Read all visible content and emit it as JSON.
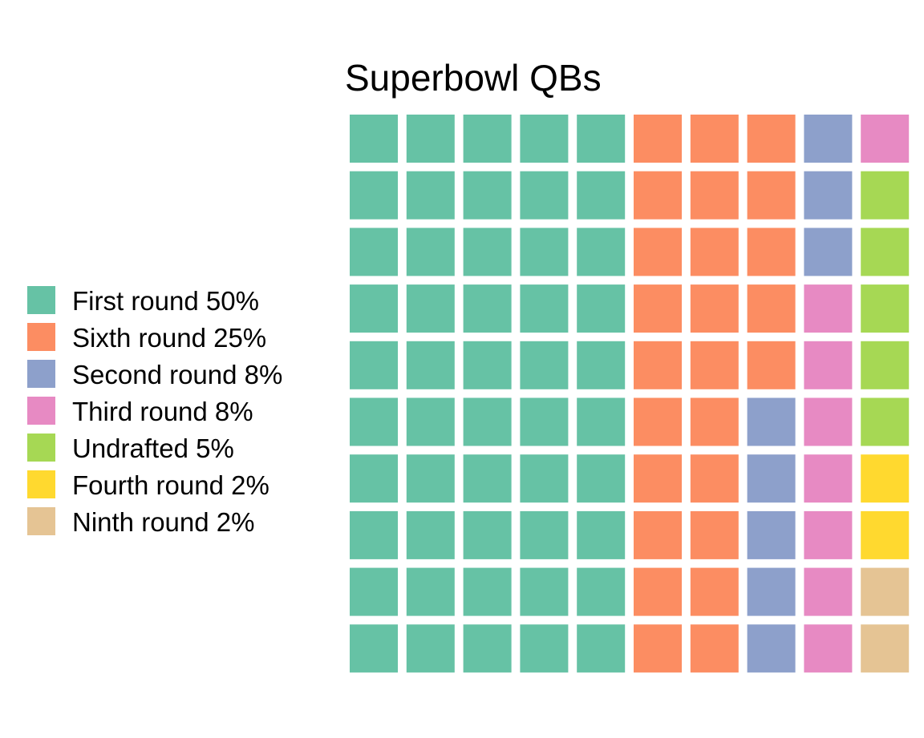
{
  "chart_data": {
    "type": "waffle",
    "title": "Superbowl QBs",
    "grid": {
      "rows": 10,
      "cols": 10,
      "fill_order": "column-major, top-to-bottom, left-to-right"
    },
    "total_cells": 100,
    "categories": [
      {
        "name": "First round",
        "percent": 50,
        "cells": 50,
        "color": "#66c2a5",
        "label": "First round 50%"
      },
      {
        "name": "Sixth round",
        "percent": 25,
        "cells": 25,
        "color": "#fc8d62",
        "label": "Sixth round 25%"
      },
      {
        "name": "Second round",
        "percent": 8,
        "cells": 8,
        "color": "#8da0cb",
        "label": "Second round 8%"
      },
      {
        "name": "Third round",
        "percent": 8,
        "cells": 8,
        "color": "#e78ac3",
        "label": "Third round 8%"
      },
      {
        "name": "Undrafted",
        "percent": 5,
        "cells": 5,
        "color": "#a6d854",
        "label": "Undrafted 5%"
      },
      {
        "name": "Fourth round",
        "percent": 2,
        "cells": 2,
        "color": "#ffd92f",
        "label": "Fourth round 2%"
      },
      {
        "name": "Ninth round",
        "percent": 2,
        "cells": 2,
        "color": "#e5c494",
        "label": "Ninth round 2%"
      }
    ],
    "legend_position": "left",
    "axes": "none",
    "grid_lines": false
  }
}
